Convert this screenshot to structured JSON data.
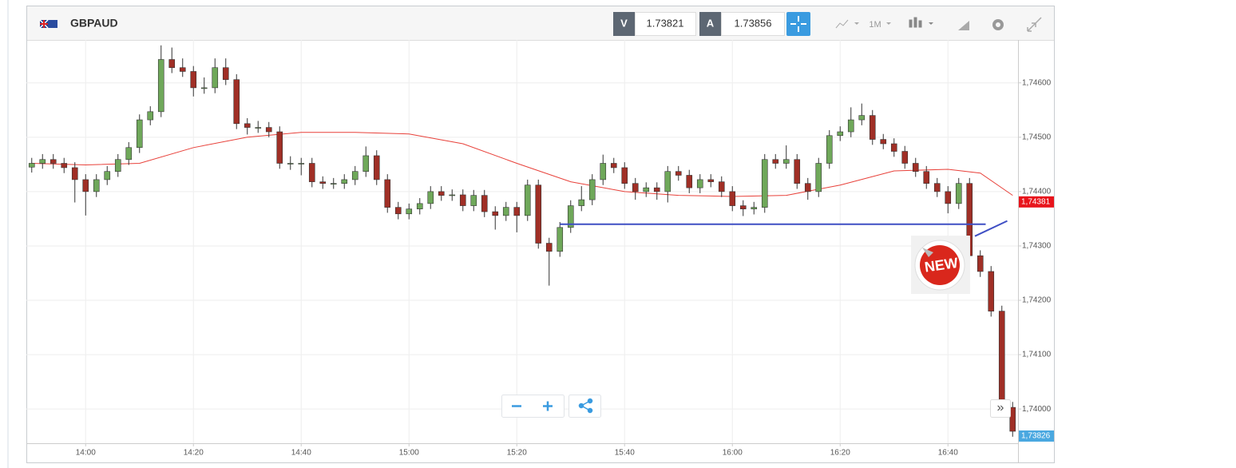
{
  "header": {
    "symbol": "GBPAUD",
    "bid_label": "V",
    "bid": "1.73821",
    "ask_label": "A",
    "ask": "1.73856",
    "timeframe": "1M"
  },
  "badge": "NEW",
  "nav": "»",
  "chart_data": {
    "type": "candlestick",
    "x": [
      "13:50",
      "13:52",
      "13:54",
      "13:56",
      "13:58",
      "14:00",
      "14:02",
      "14:04",
      "14:06",
      "14:08",
      "14:10",
      "14:12",
      "14:14",
      "14:16",
      "14:18",
      "14:20",
      "14:22",
      "14:24",
      "14:26",
      "14:28",
      "14:30",
      "14:32",
      "14:34",
      "14:36",
      "14:38",
      "14:40",
      "14:42",
      "14:44",
      "14:46",
      "14:48",
      "14:50",
      "14:52",
      "14:54",
      "14:56",
      "14:58",
      "15:00",
      "15:02",
      "15:04",
      "15:06",
      "15:08",
      "15:10",
      "15:12",
      "15:14",
      "15:16",
      "15:18",
      "15:20",
      "15:22",
      "15:24",
      "15:26",
      "15:28",
      "15:30",
      "15:32",
      "15:34",
      "15:36",
      "15:38",
      "15:40",
      "15:42",
      "15:44",
      "15:46",
      "15:48",
      "15:50",
      "15:52",
      "15:54",
      "15:56",
      "15:58",
      "16:00",
      "16:02",
      "16:04",
      "16:06",
      "16:08",
      "16:10",
      "16:12",
      "16:14",
      "16:16",
      "16:18",
      "16:20",
      "16:22",
      "16:24",
      "16:26",
      "16:28",
      "16:30",
      "16:32",
      "16:34",
      "16:36",
      "16:38",
      "16:40",
      "16:42",
      "16:44",
      "16:46",
      "16:48",
      "16:50",
      "16:52"
    ],
    "open": [
      1.74445,
      1.74452,
      1.74459,
      1.74452,
      1.74444,
      1.74422,
      1.744,
      1.74422,
      1.74437,
      1.74459,
      1.74481,
      1.74532,
      1.74547,
      1.74643,
      1.74628,
      1.74621,
      1.74591,
      1.74591,
      1.74628,
      1.74606,
      1.74525,
      1.74518,
      1.74518,
      1.7451,
      1.74452,
      1.74452,
      1.74452,
      1.74418,
      1.74415,
      1.74415,
      1.74422,
      1.74437,
      1.74466,
      1.74422,
      1.74371,
      1.74359,
      1.74368,
      1.74378,
      1.744,
      1.74393,
      1.74394,
      1.74374,
      1.74393,
      1.74363,
      1.74356,
      1.74371,
      1.74356,
      1.74412,
      1.74305,
      1.7429,
      1.74334,
      1.74374,
      1.74385,
      1.74422,
      1.74452,
      1.74444,
      1.74415,
      1.744,
      1.74407,
      1.744,
      1.74437,
      1.7443,
      1.74407,
      1.74422,
      1.74418,
      1.744,
      1.74374,
      1.74368,
      1.74371,
      1.74459,
      1.74452,
      1.74459,
      1.74415,
      1.744,
      1.74452,
      1.74503,
      1.7451,
      1.74532,
      1.7454,
      1.74496,
      1.74488,
      1.74474,
      1.74452,
      1.74437,
      1.74415,
      1.744,
      1.74378,
      1.74415,
      1.74282,
      1.74253,
      1.7418,
      1.74003
    ],
    "high": [
      1.74462,
      1.74469,
      1.74469,
      1.74462,
      1.74454,
      1.74432,
      1.74432,
      1.74447,
      1.74469,
      1.74491,
      1.74542,
      1.74557,
      1.74669,
      1.74665,
      1.74645,
      1.74631,
      1.7461,
      1.74645,
      1.74645,
      1.74616,
      1.74535,
      1.7453,
      1.74528,
      1.7452,
      1.74465,
      1.74462,
      1.74462,
      1.74428,
      1.74425,
      1.74432,
      1.74447,
      1.74483,
      1.74476,
      1.74432,
      1.74381,
      1.74378,
      1.74388,
      1.7441,
      1.7441,
      1.74404,
      1.74404,
      1.74403,
      1.74403,
      1.74373,
      1.74381,
      1.74381,
      1.74422,
      1.74422,
      1.74315,
      1.74344,
      1.74384,
      1.7441,
      1.74432,
      1.74468,
      1.74462,
      1.74454,
      1.74425,
      1.74417,
      1.74417,
      1.74447,
      1.74447,
      1.7444,
      1.74432,
      1.74432,
      1.74428,
      1.7441,
      1.74384,
      1.74381,
      1.74469,
      1.74469,
      1.74485,
      1.74469,
      1.74425,
      1.74462,
      1.74513,
      1.7452,
      1.74555,
      1.74562,
      1.7455,
      1.74506,
      1.74498,
      1.74484,
      1.74462,
      1.74447,
      1.74425,
      1.7441,
      1.74425,
      1.74425,
      1.74292,
      1.74263,
      1.7419,
      1.74013
    ],
    "low": [
      1.74435,
      1.74442,
      1.74442,
      1.74434,
      1.7438,
      1.74356,
      1.7439,
      1.74412,
      1.74427,
      1.74449,
      1.74471,
      1.74522,
      1.74537,
      1.74618,
      1.74611,
      1.74575,
      1.7458,
      1.74581,
      1.74596,
      1.74515,
      1.74505,
      1.74508,
      1.745,
      1.74442,
      1.7444,
      1.7443,
      1.74408,
      1.74405,
      1.74405,
      1.74405,
      1.74412,
      1.74427,
      1.74412,
      1.74361,
      1.74349,
      1.74349,
      1.74358,
      1.74368,
      1.74383,
      1.74383,
      1.74364,
      1.74364,
      1.74353,
      1.7433,
      1.74346,
      1.74325,
      1.74346,
      1.74295,
      1.74227,
      1.7428,
      1.74324,
      1.74364,
      1.74375,
      1.74412,
      1.74434,
      1.74405,
      1.74385,
      1.7439,
      1.74385,
      1.7438,
      1.7442,
      1.74397,
      1.74397,
      1.74408,
      1.7439,
      1.74364,
      1.74355,
      1.74358,
      1.74361,
      1.74442,
      1.74442,
      1.74405,
      1.74385,
      1.7439,
      1.74442,
      1.74493,
      1.745,
      1.74522,
      1.74486,
      1.74478,
      1.74464,
      1.74442,
      1.74427,
      1.74405,
      1.7439,
      1.7436,
      1.74368,
      1.74272,
      1.74243,
      1.7417,
      1.73993,
      1.73949
    ],
    "close": [
      1.74452,
      1.74459,
      1.74452,
      1.74444,
      1.74422,
      1.744,
      1.74422,
      1.74437,
      1.74459,
      1.74481,
      1.74532,
      1.74547,
      1.74643,
      1.74628,
      1.74621,
      1.74591,
      1.74591,
      1.74628,
      1.74606,
      1.74525,
      1.74518,
      1.74518,
      1.7451,
      1.74452,
      1.74452,
      1.74452,
      1.74418,
      1.74415,
      1.74415,
      1.74422,
      1.74437,
      1.74466,
      1.74422,
      1.74371,
      1.74359,
      1.74368,
      1.74378,
      1.744,
      1.74393,
      1.74394,
      1.74374,
      1.74393,
      1.74363,
      1.74356,
      1.74371,
      1.74356,
      1.74412,
      1.74305,
      1.7429,
      1.74334,
      1.74374,
      1.74385,
      1.74422,
      1.74452,
      1.74444,
      1.74415,
      1.744,
      1.74407,
      1.744,
      1.74437,
      1.7443,
      1.74407,
      1.74422,
      1.74418,
      1.744,
      1.74374,
      1.74368,
      1.74371,
      1.74459,
      1.74452,
      1.74459,
      1.74415,
      1.744,
      1.74452,
      1.74503,
      1.7451,
      1.74532,
      1.7454,
      1.74496,
      1.74488,
      1.74474,
      1.74452,
      1.74437,
      1.74415,
      1.744,
      1.74378,
      1.74415,
      1.74282,
      1.74253,
      1.7418,
      1.74003,
      1.73959
    ],
    "up_color": "#6fa85a",
    "down_color": "#a02f26",
    "xlim": [
      "13:49",
      "16:53"
    ],
    "xticks": [
      "14:00",
      "14:20",
      "14:40",
      "15:00",
      "15:20",
      "15:40",
      "16:00",
      "16:20",
      "16:40"
    ],
    "ylim": [
      1.73937,
      1.74679
    ],
    "yticks": [
      {
        "value": 1.74,
        "label": "1,74000"
      },
      {
        "value": 1.741,
        "label": "1,74100"
      },
      {
        "value": 1.742,
        "label": "1,74200"
      },
      {
        "value": 1.743,
        "label": "1,74300"
      },
      {
        "value": 1.744,
        "label": "1,74400"
      },
      {
        "value": 1.745,
        "label": "1,74500"
      },
      {
        "value": 1.746,
        "label": "1,74600"
      }
    ],
    "grid": true,
    "moving_average": {
      "color": "#e8413a",
      "x": [
        "13:50",
        "14:00",
        "14:10",
        "14:20",
        "14:30",
        "14:40",
        "14:50",
        "15:00",
        "15:10",
        "15:20",
        "15:30",
        "15:40",
        "15:50",
        "16:00",
        "16:10",
        "16:20",
        "16:30",
        "16:40",
        "16:46",
        "16:52"
      ],
      "values": [
        1.74452,
        1.74449,
        1.74452,
        1.74481,
        1.745,
        1.74509,
        1.74509,
        1.74506,
        1.74488,
        1.74452,
        1.74418,
        1.744,
        1.74393,
        1.74391,
        1.74393,
        1.74412,
        1.74438,
        1.74441,
        1.74434,
        1.74393
      ]
    },
    "trend_lines": [
      {
        "color": "#3f4fc4",
        "x": [
          "15:28",
          "16:47"
        ],
        "values": [
          1.7434,
          1.7434
        ]
      },
      {
        "color": "#3f4fc4",
        "x": [
          "16:45",
          "16:51"
        ],
        "values": [
          1.74318,
          1.74346
        ]
      }
    ],
    "price_tags": [
      {
        "value": 1.74381,
        "label": "1,74381",
        "color": "#e8141b"
      },
      {
        "value": 1.73826,
        "label": "1,73826",
        "color": "#4aa8e0"
      }
    ]
  }
}
